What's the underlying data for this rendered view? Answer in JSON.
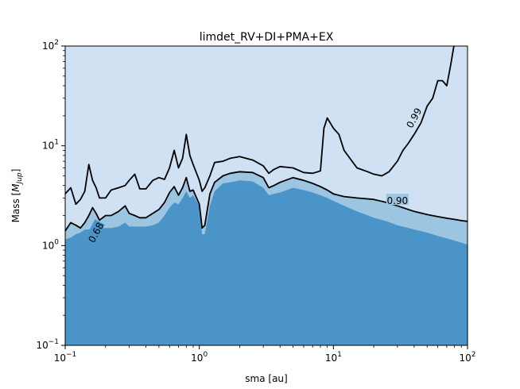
{
  "chart_data": {
    "type": "area",
    "title": "limdet_RV+DI+PMA+EX",
    "xlabel": "sma [au]",
    "ylabel": "Mass [M_Jup]",
    "ylabel_main": "Mass [",
    "ylabel_sym": "M",
    "ylabel_sub": "Jup",
    "ylabel_close": "]",
    "xscale": "log",
    "yscale": "log",
    "xlim": [
      0.1,
      100
    ],
    "ylim": [
      0.1,
      100
    ],
    "xticks": [
      {
        "value": 0.1,
        "base": "10",
        "exp": "−1"
      },
      {
        "value": 1,
        "base": "10",
        "exp": "0"
      },
      {
        "value": 10,
        "base": "10",
        "exp": "1"
      },
      {
        "value": 100,
        "base": "10",
        "exp": "2"
      }
    ],
    "yticks": [
      {
        "value": 0.1,
        "base": "10",
        "exp": "−1"
      },
      {
        "value": 1,
        "base": "10",
        "exp": "0"
      },
      {
        "value": 10,
        "base": "10",
        "exp": "1"
      },
      {
        "value": 100,
        "base": "10",
        "exp": "2"
      }
    ],
    "colors": {
      "level_068": "#4a94c8",
      "level_090": "#9bc5e0",
      "level_099": "#cfe1f2",
      "contour": "#000000"
    },
    "series": [
      {
        "name": "0.68",
        "x": [
          0.1,
          0.11,
          0.12,
          0.13,
          0.14,
          0.15,
          0.16,
          0.17,
          0.18,
          0.2,
          0.22,
          0.25,
          0.28,
          0.3,
          0.33,
          0.36,
          0.4,
          0.45,
          0.5,
          0.55,
          0.6,
          0.65,
          0.7,
          0.75,
          0.8,
          0.85,
          0.9,
          1.0,
          1.05,
          1.1,
          1.2,
          1.3,
          1.5,
          1.7,
          2.0,
          2.5,
          3.0,
          3.3,
          3.6,
          4.0,
          5.0,
          6.0,
          7.0,
          8.0,
          9.0,
          10,
          12,
          15,
          20,
          25,
          30,
          40,
          50,
          60,
          70,
          80,
          90,
          100
        ],
        "y": [
          1.15,
          1.2,
          1.3,
          1.35,
          1.45,
          1.45,
          1.5,
          1.55,
          1.5,
          1.5,
          1.5,
          1.55,
          1.7,
          1.55,
          1.55,
          1.55,
          1.55,
          1.6,
          1.7,
          2.0,
          2.4,
          2.7,
          2.6,
          3.0,
          3.5,
          3.0,
          3.2,
          2.5,
          1.3,
          1.3,
          2.5,
          3.5,
          4.2,
          4.3,
          4.5,
          4.4,
          3.8,
          3.2,
          3.3,
          3.4,
          3.8,
          3.6,
          3.4,
          3.2,
          3.0,
          2.8,
          2.5,
          2.2,
          1.9,
          1.75,
          1.6,
          1.45,
          1.35,
          1.25,
          1.18,
          1.12,
          1.07,
          1.02
        ]
      },
      {
        "name": "0.90",
        "x": [
          0.1,
          0.11,
          0.12,
          0.13,
          0.14,
          0.15,
          0.16,
          0.17,
          0.18,
          0.2,
          0.22,
          0.25,
          0.28,
          0.3,
          0.33,
          0.36,
          0.4,
          0.45,
          0.5,
          0.55,
          0.6,
          0.65,
          0.7,
          0.75,
          0.8,
          0.85,
          0.9,
          1.0,
          1.05,
          1.1,
          1.2,
          1.3,
          1.5,
          1.7,
          2.0,
          2.5,
          3.0,
          3.3,
          3.6,
          4.0,
          5.0,
          6.0,
          7.0,
          8.0,
          9.0,
          10,
          12,
          15,
          20,
          25,
          30,
          40,
          50,
          60,
          70,
          80,
          90,
          100
        ],
        "y": [
          1.4,
          1.7,
          1.6,
          1.5,
          1.7,
          2.0,
          2.4,
          2.1,
          1.8,
          2.0,
          2.0,
          2.2,
          2.5,
          2.1,
          2.0,
          1.9,
          1.9,
          2.1,
          2.3,
          2.7,
          3.4,
          3.9,
          3.2,
          3.8,
          4.8,
          3.5,
          3.6,
          2.6,
          1.5,
          1.6,
          3.3,
          4.3,
          5.0,
          5.3,
          5.5,
          5.4,
          4.8,
          3.8,
          4.0,
          4.3,
          4.8,
          4.5,
          4.2,
          3.9,
          3.6,
          3.3,
          3.1,
          3.0,
          2.9,
          2.7,
          2.5,
          2.2,
          2.05,
          1.95,
          1.88,
          1.83,
          1.78,
          1.75
        ]
      },
      {
        "name": "0.99",
        "x": [
          0.1,
          0.11,
          0.12,
          0.13,
          0.14,
          0.15,
          0.16,
          0.17,
          0.18,
          0.2,
          0.22,
          0.25,
          0.28,
          0.3,
          0.33,
          0.36,
          0.4,
          0.45,
          0.5,
          0.55,
          0.6,
          0.65,
          0.7,
          0.75,
          0.8,
          0.85,
          0.9,
          1.0,
          1.05,
          1.1,
          1.2,
          1.3,
          1.5,
          1.7,
          2.0,
          2.5,
          3.0,
          3.3,
          3.6,
          4.0,
          5.0,
          6.0,
          7.0,
          8.0,
          8.5,
          9.0,
          10,
          11,
          12,
          15,
          18,
          20,
          23,
          26,
          30,
          33,
          36,
          40,
          45,
          50,
          55,
          60,
          65,
          70,
          75,
          80,
          90,
          100
        ],
        "y": [
          3.3,
          3.8,
          2.6,
          2.9,
          3.5,
          6.5,
          4.5,
          3.8,
          3.0,
          3.0,
          3.6,
          3.8,
          4.0,
          4.5,
          5.2,
          3.7,
          3.7,
          4.5,
          4.8,
          4.6,
          6.0,
          9.0,
          6.0,
          7.5,
          13.0,
          8.0,
          6.5,
          4.5,
          3.5,
          3.8,
          5.0,
          6.8,
          7.0,
          7.5,
          7.8,
          7.2,
          6.3,
          5.3,
          5.8,
          6.2,
          6.0,
          5.4,
          5.3,
          5.6,
          15.0,
          19.0,
          15.0,
          13.0,
          9.0,
          6.0,
          5.5,
          5.2,
          5.0,
          5.5,
          7.0,
          9.0,
          10.5,
          13.0,
          17.0,
          25.0,
          30.0,
          45.0,
          45.0,
          40.0,
          65.0,
          110,
          110,
          110
        ]
      }
    ],
    "contour_labels": [
      {
        "text": "0.68",
        "x": 0.17,
        "y": 1.35,
        "rotation": -62
      },
      {
        "text": "0.90",
        "x": 30.0,
        "y": 2.8,
        "rotation": 0
      },
      {
        "text": "0.99",
        "x": 40.0,
        "y": 19.0,
        "rotation": -62
      }
    ],
    "grid": false,
    "legend": "none"
  }
}
